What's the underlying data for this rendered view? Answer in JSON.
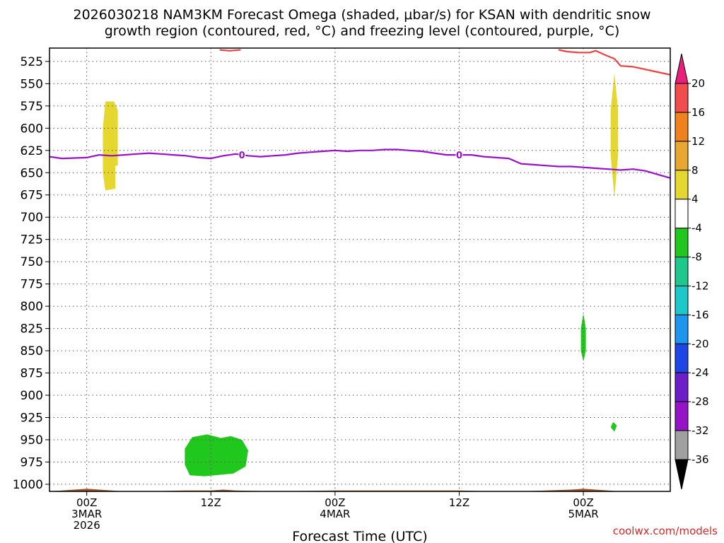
{
  "chart_data": {
    "type": "time-height cross-section",
    "title_lines": [
      "2026030218 NAM3KM Forecast Omega (shaded, μbar/s) for KSAN with dendritic snow",
      "growth region (contoured, red, °C) and freezing level (contoured, purple, °C)"
    ],
    "xlabel": "Forecast Time (UTC)",
    "credit": "coolwx.com/models",
    "x_range_hours": [
      -3,
      47
    ],
    "x_ticks": [
      {
        "hour": 0,
        "lines": [
          "00Z",
          "3MAR",
          "2026"
        ]
      },
      {
        "hour": 10,
        "lines": [
          "12Z"
        ]
      },
      {
        "hour": 20,
        "lines": [
          "00Z",
          "4MAR"
        ]
      },
      {
        "hour": 30,
        "lines": [
          "12Z"
        ]
      },
      {
        "hour": 40,
        "lines": [
          "00Z",
          "5MAR"
        ]
      }
    ],
    "y_range_mb": [
      1008,
      510
    ],
    "y_ticks": [
      525,
      550,
      575,
      600,
      625,
      650,
      675,
      700,
      725,
      750,
      775,
      800,
      825,
      850,
      875,
      900,
      925,
      950,
      975,
      1000
    ],
    "grid": true,
    "colorbar": {
      "labels": [
        20,
        16,
        12,
        8,
        4,
        -4,
        -8,
        -12,
        -16,
        -20,
        -24,
        -28,
        -32,
        -36
      ],
      "colors_top_to_bottom": [
        "#e8207c",
        "#f24d4d",
        "#f0821e",
        "#e8a830",
        "#e5d630",
        "#ffffff",
        "#20c81e",
        "#1ec88c",
        "#1ec8c8",
        "#1e96f0",
        "#1e46e6",
        "#6e1ec8",
        "#9614c8",
        "#a0a0a0",
        "#000000"
      ]
    },
    "freezing_level": {
      "contour_label": "0",
      "color": "#9a10c8",
      "x": [
        -3,
        -2,
        0,
        1,
        2,
        3,
        4,
        5,
        6,
        7,
        8,
        9,
        10,
        11,
        12,
        13,
        14,
        15,
        16,
        17,
        18,
        19,
        20,
        21,
        22,
        23,
        24,
        25,
        26,
        27,
        28,
        29,
        30,
        31,
        32,
        33,
        34,
        35,
        36,
        37,
        38,
        39,
        40,
        41,
        42,
        43,
        44,
        45,
        46,
        47
      ],
      "y": [
        632,
        634,
        633,
        630,
        631,
        630,
        629,
        628,
        629,
        630,
        631,
        633,
        634,
        631,
        629,
        631,
        632,
        631,
        630,
        628,
        627,
        626,
        625,
        626,
        625,
        625,
        624,
        624,
        625,
        626,
        628,
        630,
        630,
        630,
        632,
        633,
        634,
        640,
        641,
        642,
        643,
        643,
        644,
        645,
        646,
        647,
        646,
        648,
        652,
        656
      ]
    },
    "dgz_contour": {
      "color": "#f04040",
      "segment_a": {
        "x": [
          10.7,
          11.5,
          12.4
        ],
        "y": [
          512,
          513,
          512
        ]
      },
      "segment_b": {
        "x": [
          38,
          38.7,
          39.6,
          40.5,
          41,
          41.8,
          42.5,
          43,
          44,
          45,
          46,
          47
        ],
        "y": [
          512,
          514,
          515,
          515,
          513,
          518,
          522,
          530,
          531,
          534,
          537,
          540
        ]
      }
    },
    "omega_areas": [
      {
        "fill": "#e5d630",
        "polygon": [
          [
            1.5,
            570
          ],
          [
            2.2,
            570
          ],
          [
            2.5,
            580
          ],
          [
            2.5,
            642
          ],
          [
            2.3,
            642
          ],
          [
            2.3,
            668
          ],
          [
            1.5,
            670
          ],
          [
            1.3,
            650
          ],
          [
            1.3,
            600
          ]
        ]
      },
      {
        "fill": "#e5d630",
        "polygon": [
          [
            42.5,
            538
          ],
          [
            42.8,
            580
          ],
          [
            42.8,
            630
          ],
          [
            42.5,
            678
          ],
          [
            42.2,
            630
          ],
          [
            42.2,
            580
          ]
        ]
      },
      {
        "fill": "#20c81e",
        "polygon": [
          [
            7.9,
            960
          ],
          [
            8.5,
            947
          ],
          [
            9.7,
            944
          ],
          [
            10.8,
            948
          ],
          [
            11.6,
            946
          ],
          [
            12.5,
            950
          ],
          [
            13,
            962
          ],
          [
            12.8,
            980
          ],
          [
            11.8,
            988
          ],
          [
            9.5,
            991
          ],
          [
            8.3,
            990
          ],
          [
            7.9,
            978
          ]
        ]
      },
      {
        "fill": "#20c81e",
        "polygon": [
          [
            40,
            808
          ],
          [
            40.2,
            825
          ],
          [
            40.2,
            850
          ],
          [
            40,
            862
          ],
          [
            39.8,
            850
          ],
          [
            39.8,
            825
          ]
        ]
      },
      {
        "fill": "#20c81e",
        "polygon": [
          [
            42.4,
            930
          ],
          [
            42.7,
            934
          ],
          [
            42.5,
            941
          ],
          [
            42.2,
            936
          ]
        ]
      }
    ],
    "terrain": {
      "color": "#a0522d",
      "x": [
        -3,
        -1,
        0,
        1,
        3,
        5,
        8,
        10,
        11,
        12,
        15,
        20,
        25,
        30,
        33,
        35,
        37,
        39,
        40,
        41,
        43,
        47
      ],
      "y": [
        1008,
        1006,
        1005,
        1006,
        1008,
        1008,
        1007,
        1007,
        1006,
        1007,
        1008,
        1007,
        1007,
        1007,
        1008,
        1008,
        1007,
        1006,
        1005,
        1006,
        1008,
        1008
      ]
    }
  }
}
